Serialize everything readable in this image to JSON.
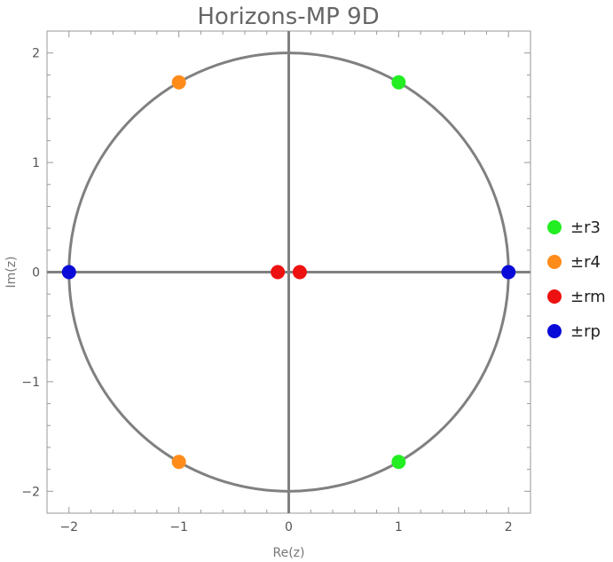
{
  "chart_data": {
    "type": "scatter",
    "title": "Horizons-MP 9D",
    "xlabel": "Re(z)",
    "ylabel": "Im(z)",
    "xlim": [
      -2.2,
      2.2
    ],
    "ylim": [
      -2.2,
      2.2
    ],
    "xticks": [
      {
        "value": -2,
        "label": "−2"
      },
      {
        "value": -1,
        "label": "−1"
      },
      {
        "value": 0,
        "label": "0"
      },
      {
        "value": 1,
        "label": "1"
      },
      {
        "value": 2,
        "label": "2"
      }
    ],
    "yticks": [
      {
        "value": -2,
        "label": "−2"
      },
      {
        "value": -1,
        "label": "−1"
      },
      {
        "value": 0,
        "label": "0"
      },
      {
        "value": 1,
        "label": "1"
      },
      {
        "value": 2,
        "label": "2"
      }
    ],
    "circle_radius": 2,
    "grid": false,
    "legend_position": "right",
    "series": [
      {
        "name": "±r3",
        "color": "#22ee22",
        "points": [
          [
            1,
            1.732
          ],
          [
            1,
            -1.732
          ]
        ]
      },
      {
        "name": "±r4",
        "color": "#ff8c1a",
        "points": [
          [
            -1,
            1.732
          ],
          [
            -1,
            -1.732
          ]
        ]
      },
      {
        "name": "±rm",
        "color": "#ee1111",
        "points": [
          [
            -0.1,
            0
          ],
          [
            0.1,
            0
          ]
        ]
      },
      {
        "name": "±rp",
        "color": "#0a0ad8",
        "points": [
          [
            -2,
            0
          ],
          [
            2,
            0
          ]
        ]
      }
    ],
    "axis_color": "#808080",
    "frame_color": "#999999"
  }
}
